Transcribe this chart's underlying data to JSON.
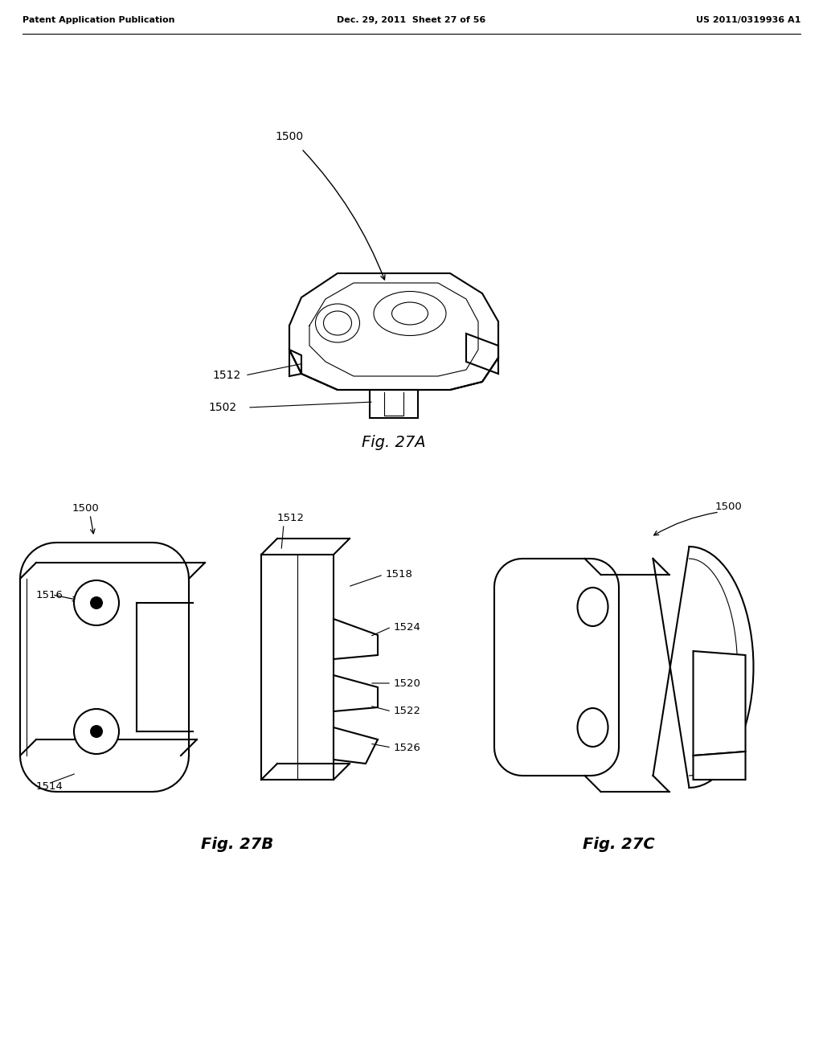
{
  "bg_color": "#ffffff",
  "header_left": "Patent Application Publication",
  "header_mid": "Dec. 29, 2011  Sheet 27 of 56",
  "header_right": "US 2011/0319936 A1",
  "fig27A_label": "Fig. 27A",
  "fig27B_label": "Fig. 27B",
  "fig27C_label": "Fig. 27C",
  "label_1500_A": "1500",
  "label_1512_A": "1512",
  "label_1502_A": "1502",
  "label_1500_B": "1500",
  "label_1512_B": "1512",
  "label_1516_B": "1516",
  "label_1518_B": "1518",
  "label_1514_B": "1514",
  "label_1520_B": "1520",
  "label_1522_B": "1522",
  "label_1524_B": "1524",
  "label_1526_B": "1526",
  "label_1500_C": "1500",
  "line_color": "#000000",
  "line_width": 1.5,
  "thin_line": 0.8
}
